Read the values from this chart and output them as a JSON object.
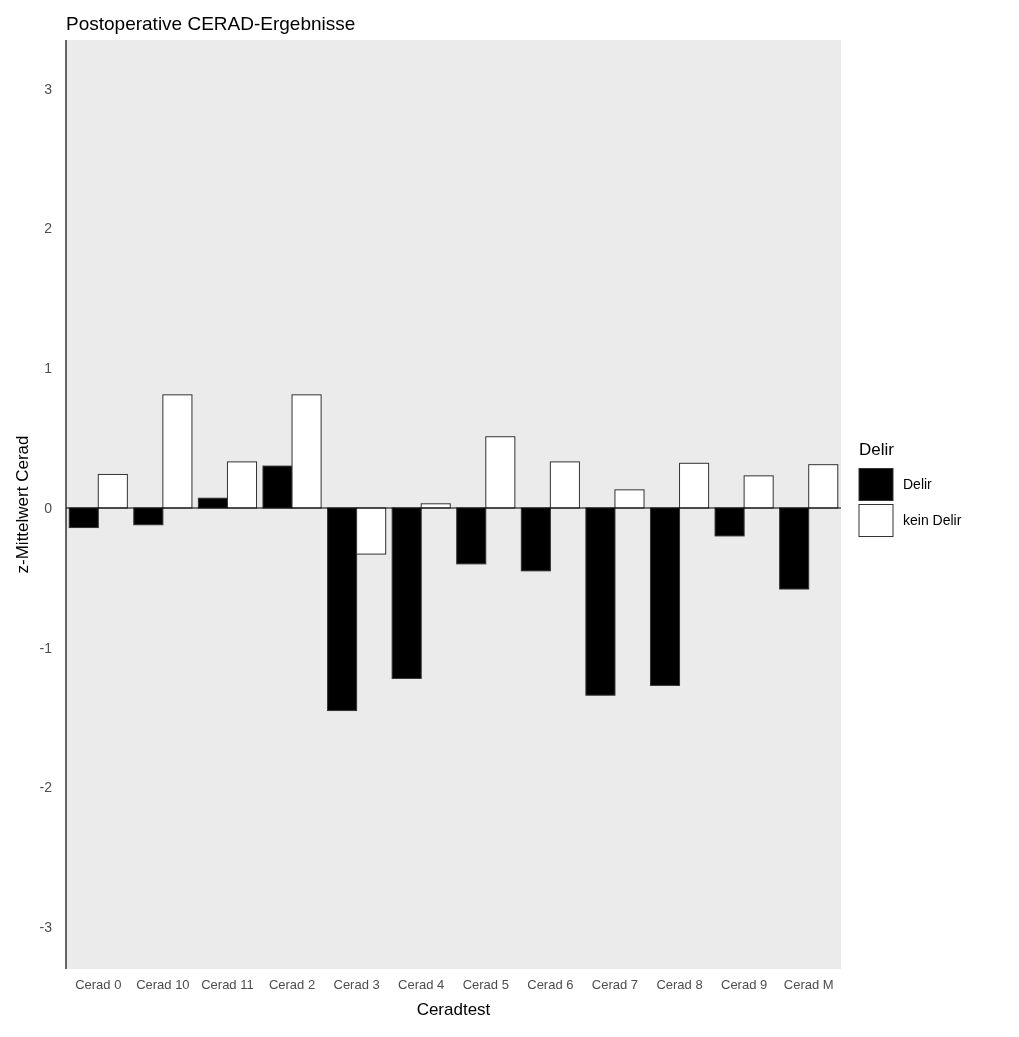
{
  "chart_data": {
    "type": "bar",
    "title": "Postoperative CERAD-Ergebnisse",
    "xlabel": "Ceradtest",
    "ylabel": "z-Mittelwert Cerad",
    "legend_title": "Delir",
    "legend": "right",
    "categories": [
      "Cerad 0",
      "Cerad 10",
      "Cerad 11",
      "Cerad 2",
      "Cerad 3",
      "Cerad 4",
      "Cerad 5",
      "Cerad 6",
      "Cerad 7",
      "Cerad 8",
      "Cerad 9",
      "Cerad M"
    ],
    "series": [
      {
        "name": "Delir",
        "color": "#000000",
        "values": [
          -0.14,
          -0.12,
          0.07,
          0.3,
          -1.45,
          -1.22,
          -0.4,
          -0.45,
          -1.34,
          -1.27,
          -0.2,
          -0.58
        ]
      },
      {
        "name": "kein Delir",
        "color": "#ffffff",
        "values": [
          0.24,
          0.81,
          0.33,
          0.81,
          -0.33,
          0.03,
          0.51,
          0.33,
          0.13,
          0.32,
          0.23,
          0.31
        ]
      }
    ],
    "ylim": [
      -3.3,
      3.35
    ],
    "yticks": [
      -3,
      -2,
      -1,
      0,
      1,
      2,
      3
    ],
    "grid": false,
    "ref_lines": [
      {
        "axis": "y",
        "value": 0,
        "color": "#000000"
      }
    ]
  }
}
